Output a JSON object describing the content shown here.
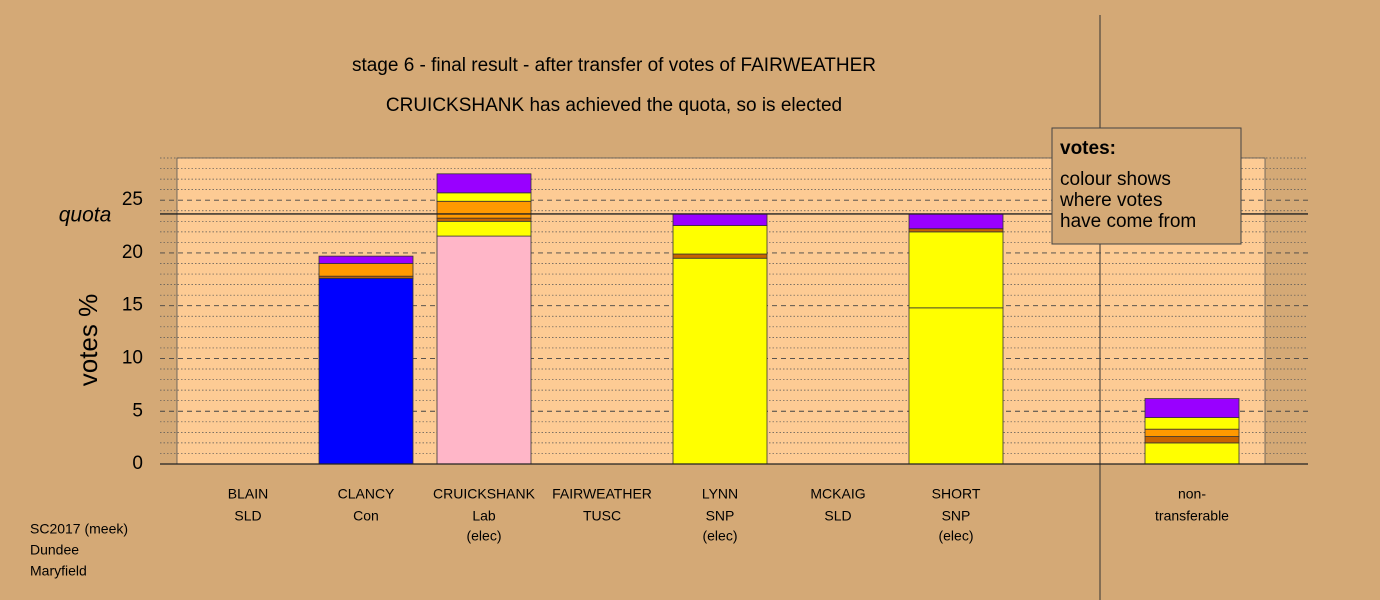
{
  "chart_data": {
    "type": "stacked_bar",
    "title": "stage 6 - final result - after transfer of votes of FAIRWEATHER",
    "subtitle": "CRUICKSHANK has achieved the quota, so is elected",
    "y_label": "votes %",
    "quota_label": "quota",
    "quota": 23.7,
    "categories": [
      "BLAIN",
      "CLANCY",
      "CRUICKSHANK",
      "FAIRWEATHER",
      "LYNN",
      "MCKAIG",
      "SHORT",
      null,
      "non-"
    ],
    "parties": [
      "SLD",
      "Con",
      "Lab",
      "TUSC",
      "SNP",
      "SLD",
      "SNP",
      null,
      "transferable"
    ],
    "notes": [
      null,
      null,
      "(elec)",
      null,
      "(elec)",
      null,
      "(elec)",
      null,
      null
    ],
    "series": [
      {
        "colors": [
          "#ff9900",
          "#0000ff",
          "#ffb6c8",
          "#c06000",
          "#ffff00",
          "#ff9900",
          "#ffff00",
          null,
          "#ffff00"
        ],
        "values": [
          0,
          17.6,
          21.6,
          0,
          19.5,
          0,
          14.8,
          null,
          0
        ]
      },
      {
        "color": "#ffff00",
        "values": [
          0,
          0,
          1.4,
          0,
          0,
          0,
          7.2,
          null,
          2.0
        ]
      },
      {
        "color": "#c86400",
        "values": [
          0,
          0.2,
          0.3,
          0,
          0.4,
          0,
          0.3,
          null,
          0.6
        ]
      },
      {
        "color": "#ff9900",
        "values": [
          0,
          1.2,
          1.6,
          0,
          0,
          0,
          0,
          null,
          0.7
        ]
      },
      {
        "color": "#ffff00",
        "values": [
          0,
          0,
          0.8,
          0,
          2.7,
          0,
          0,
          null,
          1.1
        ]
      },
      {
        "color": "#9900ff",
        "values": [
          0,
          0.7,
          1.8,
          0,
          1.1,
          0,
          1.4,
          null,
          1.8
        ]
      }
    ],
    "ylim": [
      0,
      29
    ],
    "yticks": [
      0,
      5,
      10,
      15,
      20,
      25
    ],
    "minor_yticks": [
      1,
      2,
      3,
      4,
      6,
      7,
      8,
      9,
      11,
      12,
      13,
      14,
      16,
      17,
      18,
      19,
      21,
      22,
      23,
      24,
      26,
      27,
      28,
      29
    ],
    "legend": {
      "title": "votes:",
      "lines": [
        "colour shows",
        "where votes",
        "have come from"
      ]
    },
    "footnote": [
      "SC2017 (meek)",
      "Dundee",
      "Maryfield"
    ]
  }
}
